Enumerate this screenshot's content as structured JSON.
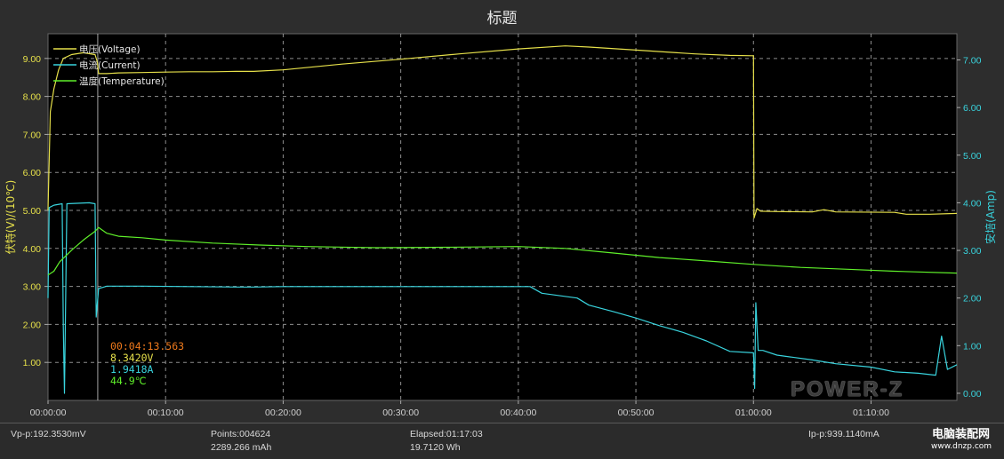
{
  "title": "标题",
  "colors": {
    "background": "#2d2d2d",
    "plot_bg": "#000000",
    "grid": "#bdbdbd",
    "voltage": "#e6e04a",
    "current": "#39d4de",
    "temperature": "#5ff02a",
    "time_readout": "#f07a1c",
    "left_axis_text": "#e6e04a",
    "right_axis_text": "#39d4de"
  },
  "chart_data": {
    "type": "line",
    "title": "标题",
    "xlabel": "",
    "ylabel_left": "伏特(V)/(10℃)",
    "ylabel_right": "安培(Amp)",
    "x_unit": "minutes",
    "xlim": [
      0,
      77.3
    ],
    "ylim_left": [
      0,
      9.65
    ],
    "ylim_right": [
      -0.15,
      7.55
    ],
    "x_ticks": [
      0,
      10,
      20,
      30,
      40,
      50,
      60,
      70
    ],
    "x_tick_labels": [
      "00:00:00",
      "00:10:00",
      "00:20:00",
      "00:30:00",
      "00:40:00",
      "00:50:00",
      "01:00:00",
      "01:10:00"
    ],
    "y_left_ticks": [
      1,
      2,
      3,
      4,
      5,
      6,
      7,
      8,
      9
    ],
    "y_left_tick_labels": [
      "1.00",
      "2.00",
      "3.00",
      "4.00",
      "5.00",
      "6.00",
      "7.00",
      "8.00",
      "9.00"
    ],
    "y_right_ticks": [
      0,
      1,
      2,
      3,
      4,
      5,
      6,
      7
    ],
    "y_right_tick_labels": [
      "0.00",
      "1.00",
      "2.00",
      "3.00",
      "4.00",
      "5.00",
      "6.00",
      "7.00"
    ],
    "grid": true,
    "legend_position": "top-left",
    "cursor_time": 4.23,
    "series": [
      {
        "name": "电压(Voltage)",
        "axis": "left",
        "color": "#e6e04a",
        "points": [
          [
            0,
            5.0
          ],
          [
            0.2,
            7.6
          ],
          [
            0.5,
            8.2
          ],
          [
            0.9,
            8.7
          ],
          [
            1.3,
            9.0
          ],
          [
            2.0,
            9.1
          ],
          [
            3.0,
            9.15
          ],
          [
            4.0,
            9.1
          ],
          [
            4.2,
            8.9
          ],
          [
            4.3,
            8.6
          ],
          [
            5.0,
            8.6
          ],
          [
            6.0,
            8.62
          ],
          [
            8.0,
            8.63
          ],
          [
            10.0,
            8.64
          ],
          [
            12.0,
            8.65
          ],
          [
            14.0,
            8.65
          ],
          [
            16.0,
            8.66
          ],
          [
            17.5,
            8.66
          ],
          [
            20.0,
            8.7
          ],
          [
            25.0,
            8.85
          ],
          [
            30.0,
            8.98
          ],
          [
            35.0,
            9.12
          ],
          [
            40.0,
            9.25
          ],
          [
            44.0,
            9.33
          ],
          [
            46.0,
            9.3
          ],
          [
            50.0,
            9.22
          ],
          [
            55.0,
            9.12
          ],
          [
            58.0,
            9.08
          ],
          [
            60.0,
            9.07
          ],
          [
            60.05,
            4.8
          ],
          [
            60.3,
            5.05
          ],
          [
            60.6,
            4.98
          ],
          [
            62.0,
            4.97
          ],
          [
            65.0,
            4.96
          ],
          [
            66.0,
            5.02
          ],
          [
            67.0,
            4.96
          ],
          [
            72.0,
            4.95
          ],
          [
            73.0,
            4.9
          ],
          [
            75.0,
            4.9
          ],
          [
            77.3,
            4.92
          ]
        ]
      },
      {
        "name": "电流(Current)",
        "axis": "right",
        "color": "#39d4de",
        "points": [
          [
            0,
            2.0
          ],
          [
            0.1,
            3.9
          ],
          [
            0.5,
            3.95
          ],
          [
            1.2,
            3.98
          ],
          [
            1.3,
            1.4
          ],
          [
            1.4,
            0.0
          ],
          [
            1.6,
            3.98
          ],
          [
            3.5,
            4.0
          ],
          [
            4.0,
            3.98
          ],
          [
            4.1,
            1.6
          ],
          [
            4.3,
            2.2
          ],
          [
            4.6,
            2.22
          ],
          [
            5.0,
            2.25
          ],
          [
            8.0,
            2.25
          ],
          [
            12.0,
            2.24
          ],
          [
            16.0,
            2.23
          ],
          [
            17.5,
            2.23
          ],
          [
            20.0,
            2.24
          ],
          [
            30.0,
            2.24
          ],
          [
            38.0,
            2.24
          ],
          [
            41.0,
            2.24
          ],
          [
            42.0,
            2.1
          ],
          [
            45.0,
            2.0
          ],
          [
            46.0,
            1.85
          ],
          [
            48.0,
            1.72
          ],
          [
            50.0,
            1.58
          ],
          [
            52.0,
            1.42
          ],
          [
            54.0,
            1.28
          ],
          [
            56.0,
            1.1
          ],
          [
            58.0,
            0.88
          ],
          [
            60.0,
            0.85
          ],
          [
            60.1,
            0.1
          ],
          [
            60.2,
            1.9
          ],
          [
            60.4,
            0.9
          ],
          [
            60.8,
            0.9
          ],
          [
            62.0,
            0.8
          ],
          [
            65.0,
            0.7
          ],
          [
            67.0,
            0.62
          ],
          [
            70.0,
            0.55
          ],
          [
            72.0,
            0.45
          ],
          [
            74.0,
            0.42
          ],
          [
            75.5,
            0.38
          ],
          [
            76.0,
            1.2
          ],
          [
            76.5,
            0.5
          ],
          [
            77.3,
            0.6
          ]
        ]
      },
      {
        "name": "温度(Temperature)",
        "axis": "left",
        "color": "#5ff02a",
        "points": [
          [
            0,
            3.3
          ],
          [
            0.5,
            3.4
          ],
          [
            1.0,
            3.65
          ],
          [
            2.0,
            3.95
          ],
          [
            3.0,
            4.22
          ],
          [
            4.0,
            4.45
          ],
          [
            4.3,
            4.55
          ],
          [
            5.0,
            4.4
          ],
          [
            6.0,
            4.32
          ],
          [
            8.0,
            4.28
          ],
          [
            10.0,
            4.22
          ],
          [
            14.0,
            4.14
          ],
          [
            18.0,
            4.09
          ],
          [
            22.0,
            4.05
          ],
          [
            28.0,
            4.02
          ],
          [
            34.0,
            4.03
          ],
          [
            40.0,
            4.05
          ],
          [
            44.0,
            4.0
          ],
          [
            48.0,
            3.88
          ],
          [
            52.0,
            3.76
          ],
          [
            56.0,
            3.67
          ],
          [
            60.0,
            3.58
          ],
          [
            64.0,
            3.5
          ],
          [
            68.0,
            3.45
          ],
          [
            72.0,
            3.4
          ],
          [
            77.3,
            3.35
          ]
        ]
      }
    ]
  },
  "legend": [
    {
      "label": "电压(Voltage)",
      "color": "#e6e04a"
    },
    {
      "label": "电流(Current)",
      "color": "#39d4de"
    },
    {
      "label": "温度(Temperature)",
      "color": "#5ff02a"
    }
  ],
  "readout": {
    "time": "00:04:13.563",
    "voltage": "8.3420V",
    "current": "1.9418A",
    "temperature": "44.9℃"
  },
  "logo": "POWER-Z",
  "status": {
    "vpp": "Vp-p:192.3530mV",
    "points": "Points:004624",
    "capacity": "2289.266 mAh",
    "elapsed": "Elapsed:01:17:03",
    "energy": "19.7120 Wh",
    "ipp": "Ip-p:939.1140mA"
  },
  "watermark": {
    "line1": "电脑装配网",
    "line2": "www.dnzp.com"
  }
}
